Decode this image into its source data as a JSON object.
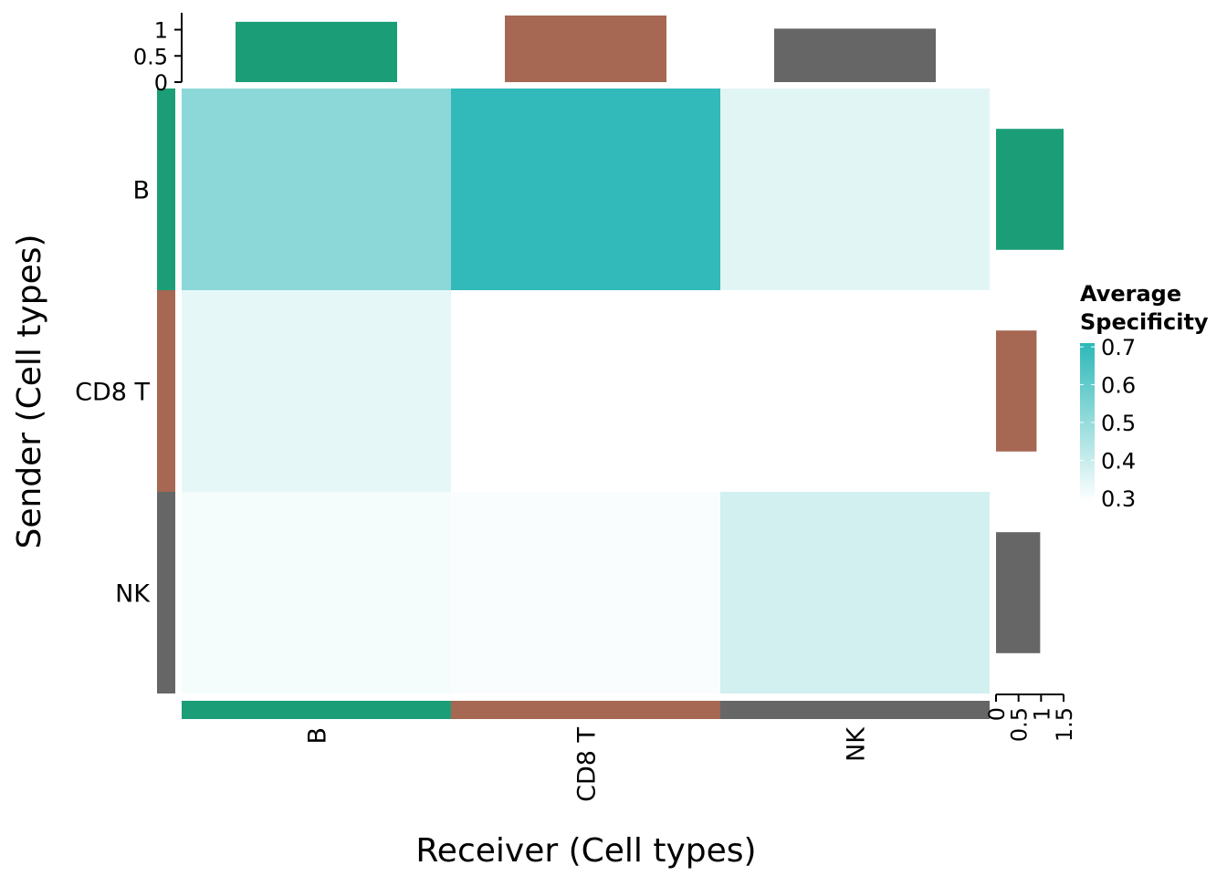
{
  "chart_data": {
    "type": "heatmap",
    "xlabel": "Receiver (Cell types)",
    "ylabel": "Sender (Cell types)",
    "senders": [
      "B",
      "CD8 T",
      "NK"
    ],
    "receivers": [
      "B",
      "CD8 T",
      "NK"
    ],
    "values": [
      [
        0.52,
        0.7,
        0.35
      ],
      [
        0.34,
        null,
        null
      ],
      [
        0.31,
        0.3,
        0.38
      ]
    ],
    "group_colors": {
      "B": "#1B9E77",
      "CD8 T": "#A66753",
      "NK": "#666666"
    },
    "color_scale": {
      "low_color": "#FFFFFF",
      "high_color": "#2DB8B8",
      "range": [
        0.29,
        0.71
      ]
    },
    "top_bars": {
      "values": [
        1.15,
        1.27,
        1.02
      ],
      "axis_ticks": [
        "0",
        "0.5",
        "1"
      ],
      "range": [
        0,
        1.27
      ]
    },
    "right_bars": {
      "values": [
        1.5,
        0.9,
        0.98
      ],
      "axis_ticks": [
        "0",
        "0.5",
        "1",
        "1.5"
      ],
      "range": [
        0,
        1.5
      ]
    },
    "legend": {
      "title_lines": [
        "Average",
        "Specificity"
      ],
      "ticks": [
        "0.7",
        "0.6",
        "0.5",
        "0.4",
        "0.3"
      ],
      "position": "right"
    }
  }
}
